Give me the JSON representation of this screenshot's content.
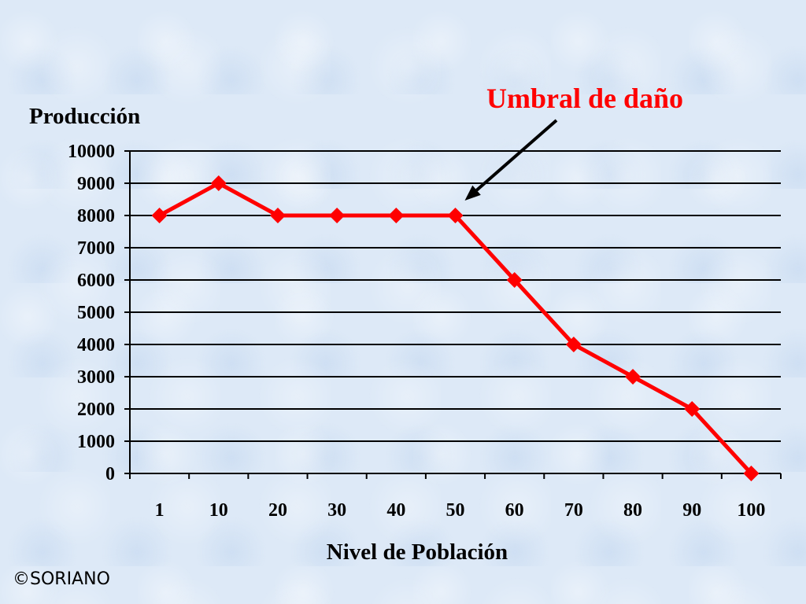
{
  "chart_data": {
    "type": "line",
    "title": "",
    "xlabel": "Nivel de Población",
    "ylabel": "Producción",
    "categories": [
      "1",
      "10",
      "20",
      "30",
      "40",
      "50",
      "60",
      "70",
      "80",
      "90",
      "100"
    ],
    "series": [
      {
        "values": [
          8000,
          9000,
          8000,
          8000,
          8000,
          8000,
          6000,
          4000,
          3000,
          2000,
          0
        ],
        "color": "#ff0000",
        "marker": "diamond"
      }
    ],
    "ylim": [
      0,
      10000
    ],
    "yticks": [
      "0",
      "1000",
      "2000",
      "3000",
      "4000",
      "5000",
      "6000",
      "7000",
      "8000",
      "9000",
      "10000"
    ],
    "grid": "horizontal",
    "legend": "none",
    "annotation": {
      "text": "Umbral de daño",
      "color": "#ff0000",
      "target_category": "50",
      "target_value": 8000
    }
  },
  "footer": {
    "copyright": "©SORIANO"
  }
}
